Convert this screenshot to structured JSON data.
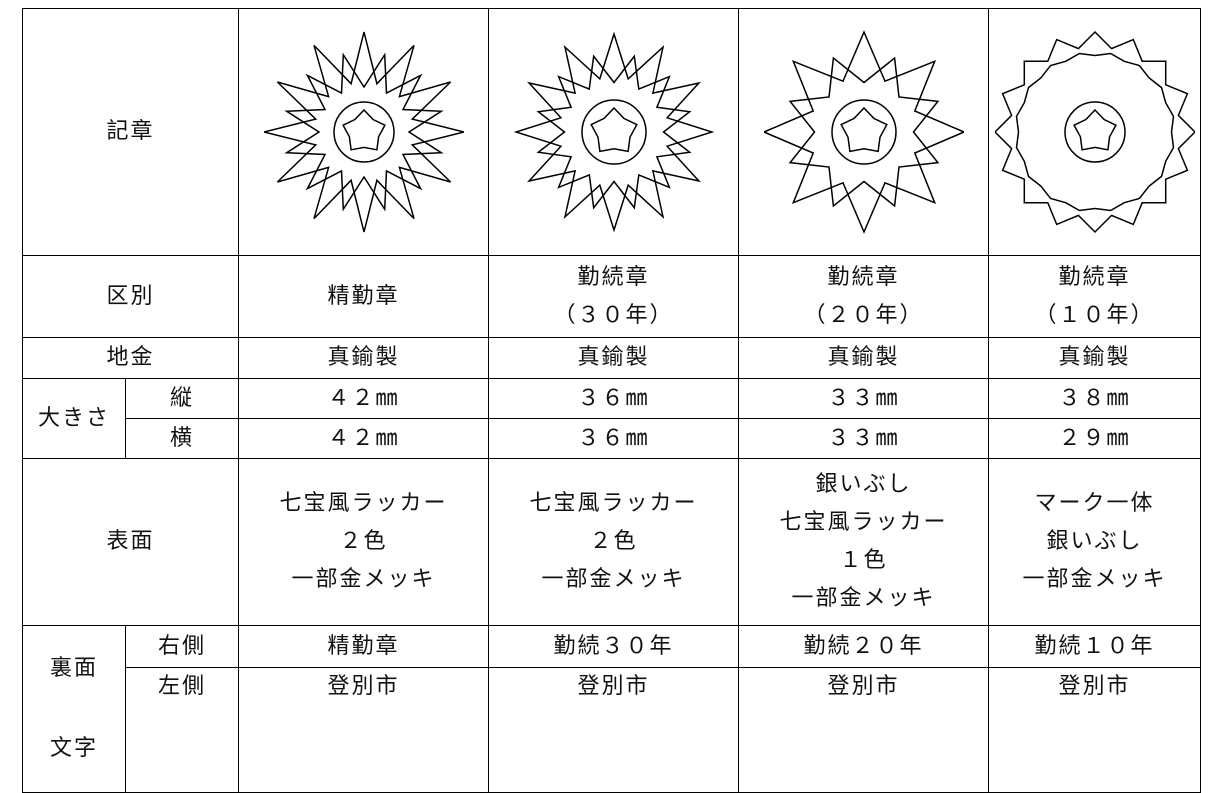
{
  "table": {
    "emblem_label": "記章",
    "classification": {
      "label": "区別",
      "cells": [
        [
          "精勤章"
        ],
        [
          "勤続章",
          "（３０年）"
        ],
        [
          "勤続章",
          "（２０年）"
        ],
        [
          "勤続章",
          "（１０年）"
        ]
      ]
    },
    "material": {
      "label": "地金",
      "cells": [
        "真鍮製",
        "真鍮製",
        "真鍮製",
        "真鍮製"
      ]
    },
    "size": {
      "label": "大きさ",
      "height": {
        "label": "縦",
        "cells": [
          "４２㎜",
          "３６㎜",
          "３３㎜",
          "３８㎜"
        ]
      },
      "width": {
        "label": "横",
        "cells": [
          "４２㎜",
          "３６㎜",
          "３３㎜",
          "２９㎜"
        ]
      }
    },
    "surface": {
      "label": "表面",
      "cells": [
        [
          "七宝風ラッカー",
          "２色",
          "一部金メッキ"
        ],
        [
          "七宝風ラッカー",
          "２色",
          "一部金メッキ"
        ],
        [
          "銀いぶし",
          "七宝風ラッカー",
          "１色",
          "一部金メッキ"
        ],
        [
          "マーク一体",
          "銀いぶし",
          "一部金メッキ"
        ]
      ]
    },
    "back_text": {
      "label": [
        "裏面",
        "文字"
      ],
      "right": {
        "label": "右側",
        "cells": [
          "精勤章",
          "勤続３０年",
          "勤続２０年",
          "勤続１０年"
        ]
      },
      "left": {
        "label": "左側",
        "cells": [
          "登別市",
          "登別市",
          "登別市",
          "登別市"
        ]
      }
    }
  }
}
